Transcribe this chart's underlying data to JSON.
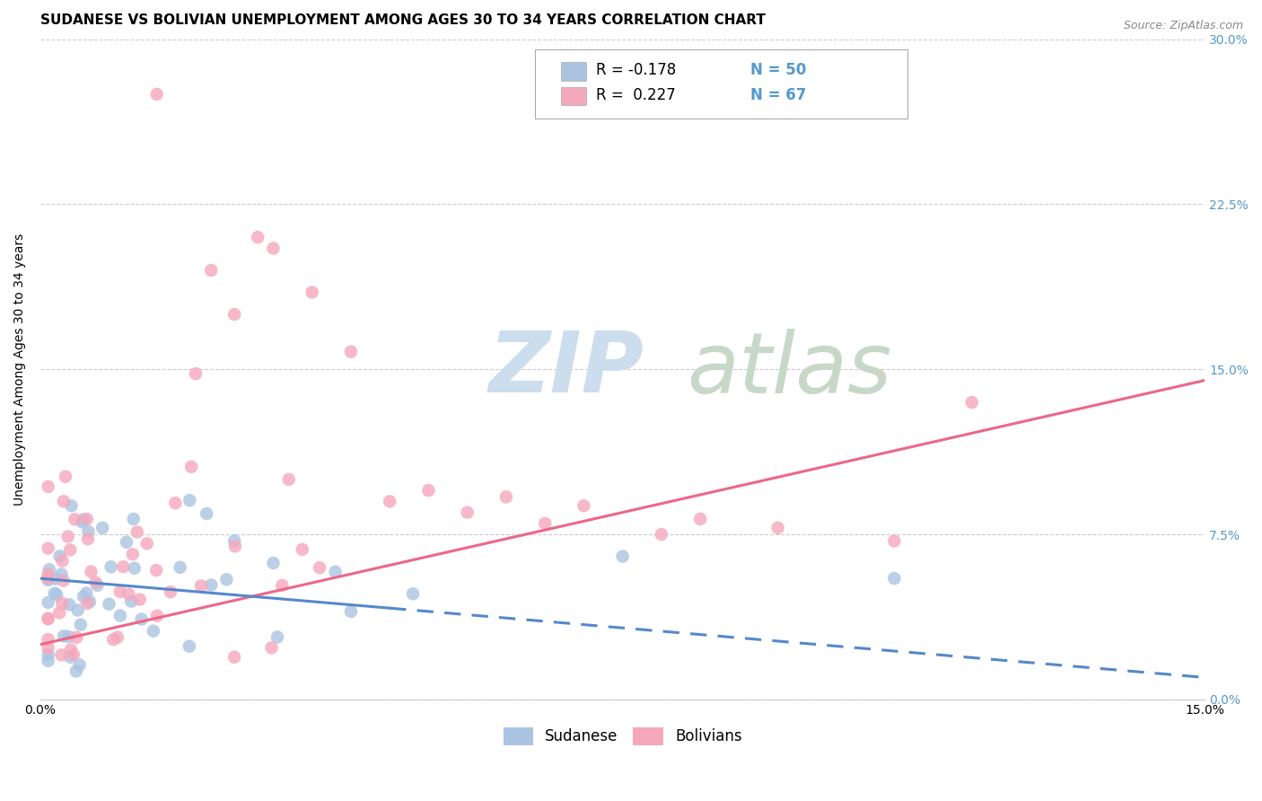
{
  "title": "SUDANESE VS BOLIVIAN UNEMPLOYMENT AMONG AGES 30 TO 34 YEARS CORRELATION CHART",
  "source": "Source: ZipAtlas.com",
  "ylabel_label": "Unemployment Among Ages 30 to 34 years",
  "legend_r_sudanese": "R = -0.178",
  "legend_n_sudanese": "N = 50",
  "legend_r_bolivians": "R =  0.227",
  "legend_n_bolivians": "N = 67",
  "sudanese_color": "#aac4e2",
  "bolivians_color": "#f5a8bc",
  "sudanese_line_color": "#5588cc",
  "bolivians_line_color": "#ee6688",
  "watermark_zip_color": "#c8d8ec",
  "watermark_atlas_color": "#c8d8c0",
  "xlim": [
    0.0,
    0.15
  ],
  "ylim": [
    0.0,
    0.3
  ],
  "x_tick_vals": [
    0.0,
    0.05,
    0.1,
    0.15
  ],
  "x_tick_labels": [
    "0.0%",
    "",
    "",
    "15.0%"
  ],
  "y_tick_vals": [
    0.0,
    0.075,
    0.15,
    0.225,
    0.3
  ],
  "y_tick_labels": [
    "0.0%",
    "7.5%",
    "15.0%",
    "22.5%",
    "30.0%"
  ],
  "title_fontsize": 11,
  "axis_label_fontsize": 10,
  "tick_fontsize": 10,
  "legend_fontsize": 12,
  "source_fontsize": 9,
  "background_color": "#ffffff",
  "grid_color": "#cccccc",
  "right_tick_color": "#5599cc"
}
